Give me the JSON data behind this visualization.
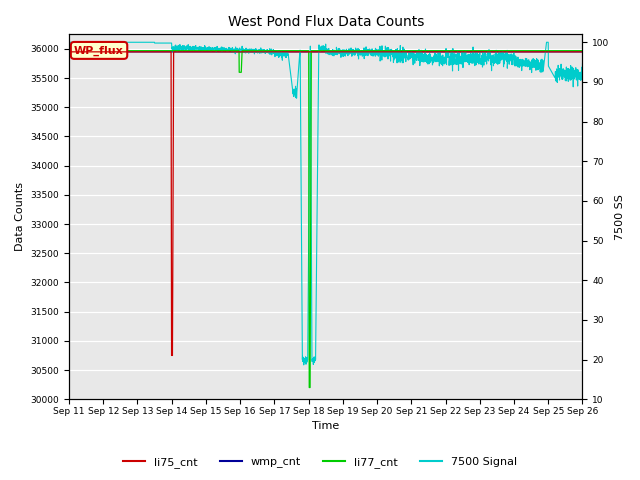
{
  "title": "West Pond Flux Data Counts",
  "xlabel": "Time",
  "ylabel_left": "Data Counts",
  "ylabel_right": "7500 SS",
  "xlim": [
    0,
    15
  ],
  "ylim_left": [
    30000,
    36250
  ],
  "ylim_right": [
    10,
    102
  ],
  "yticks_left": [
    30000,
    30500,
    31000,
    31500,
    32000,
    32500,
    33000,
    33500,
    34000,
    34500,
    35000,
    35500,
    36000
  ],
  "yticks_right": [
    10,
    20,
    30,
    40,
    50,
    60,
    70,
    80,
    90,
    100
  ],
  "xtick_labels": [
    "Sep 11",
    "Sep 12",
    "Sep 13",
    "Sep 14",
    "Sep 15",
    "Sep 16",
    "Sep 17",
    "Sep 18",
    "Sep 19",
    "Sep 20",
    "Sep 21",
    "Sep 22",
    "Sep 23",
    "Sep 24",
    "Sep 25",
    "Sep 26"
  ],
  "xtick_positions": [
    0,
    1,
    2,
    3,
    4,
    5,
    6,
    7,
    8,
    9,
    10,
    11,
    12,
    13,
    14,
    15
  ],
  "bg_color": "#e8e8e8",
  "legend_box_color": "#ffffcc",
  "legend_box_text": "WP_flux",
  "legend_box_border": "#cc0000",
  "line_colors": {
    "li75_cnt": "#cc0000",
    "wmp_cnt": "#000099",
    "li77_cnt": "#00cc00",
    "7500_signal": "#00cccc"
  },
  "base_counts": 35950,
  "wmp_base": 35950,
  "li75_base": 35950,
  "li77_base": 35970,
  "sig_base": 99.5
}
